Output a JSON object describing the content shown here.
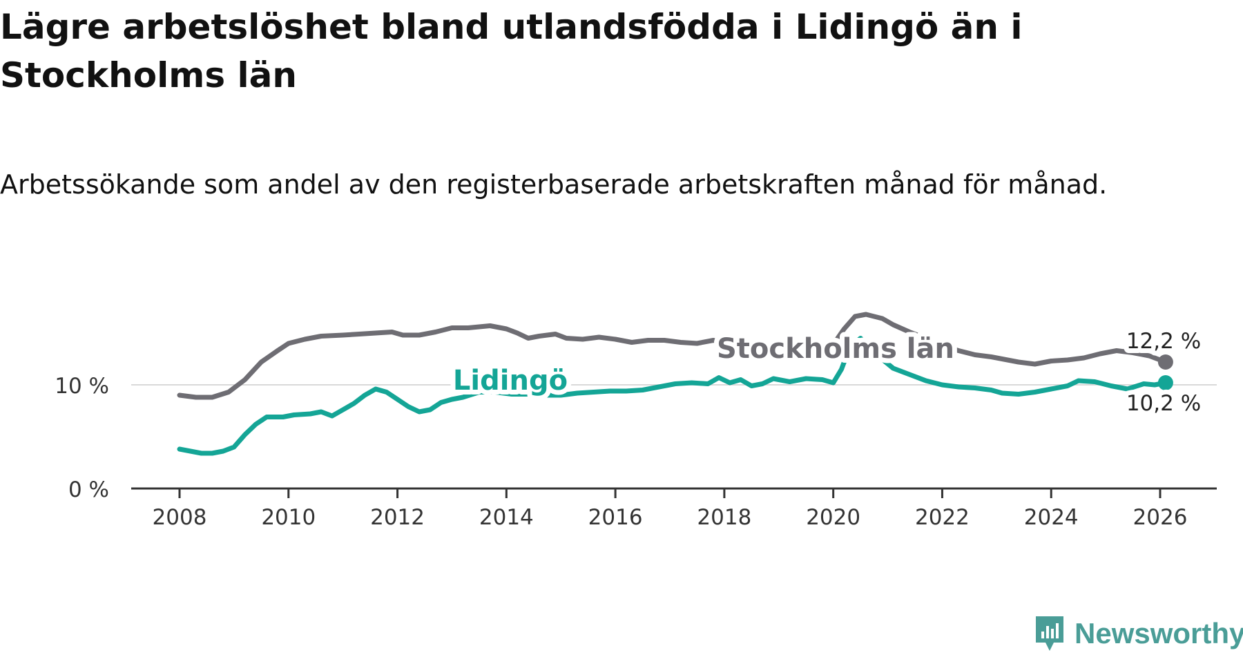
{
  "header": {
    "title": "Lägre arbetslöshet bland utlandsfödda i Lidingö än i Stockholms län",
    "subtitle": "Arbetssökande som andel av den registerbaserade arbetskraften månad för månad."
  },
  "branding": {
    "name": "Newsworthy",
    "icon": "newsworthy-logo-icon"
  },
  "colors": {
    "stockholm": "#6e6d73",
    "lidingo": "#14a596",
    "axis": "#333333",
    "grid": "#d9d9d9",
    "brand": "#4a9d97"
  },
  "chart_data": {
    "type": "line",
    "title": "Lägre arbetslöshet bland utlandsfödda i Lidingö än i Stockholms län",
    "subtitle": "Arbetssökande som andel av den registerbaserade arbetskraften månad för månad.",
    "xlabel": "",
    "ylabel": "",
    "xlim": [
      2007.1,
      2027.0
    ],
    "ylim": [
      0,
      20
    ],
    "x_ticks": [
      2008,
      2010,
      2012,
      2014,
      2016,
      2018,
      2020,
      2022,
      2024,
      2026
    ],
    "x_tick_labels": [
      "2008",
      "2010",
      "2012",
      "2014",
      "2016",
      "2018",
      "2020",
      "2022",
      "2024",
      "2026"
    ],
    "y_ticks": [
      0,
      10
    ],
    "y_tick_labels": [
      "0 %",
      "10 %"
    ],
    "grid": "horizontal",
    "series": [
      {
        "name": "Stockholms län",
        "label": "Stockholms län",
        "end_label": "12,2 %",
        "color_key": "stockholm",
        "points": [
          [
            2008.0,
            9.0
          ],
          [
            2008.3,
            8.8
          ],
          [
            2008.6,
            8.8
          ],
          [
            2008.9,
            9.3
          ],
          [
            2009.2,
            10.5
          ],
          [
            2009.5,
            12.2
          ],
          [
            2009.8,
            13.3
          ],
          [
            2010.0,
            14.0
          ],
          [
            2010.3,
            14.4
          ],
          [
            2010.6,
            14.7
          ],
          [
            2011.0,
            14.8
          ],
          [
            2011.3,
            14.9
          ],
          [
            2011.6,
            15.0
          ],
          [
            2011.9,
            15.1
          ],
          [
            2012.1,
            14.8
          ],
          [
            2012.4,
            14.8
          ],
          [
            2012.7,
            15.1
          ],
          [
            2013.0,
            15.5
          ],
          [
            2013.3,
            15.5
          ],
          [
            2013.7,
            15.7
          ],
          [
            2014.0,
            15.4
          ],
          [
            2014.2,
            15.0
          ],
          [
            2014.4,
            14.5
          ],
          [
            2014.6,
            14.7
          ],
          [
            2014.9,
            14.9
          ],
          [
            2015.1,
            14.5
          ],
          [
            2015.4,
            14.4
          ],
          [
            2015.7,
            14.6
          ],
          [
            2016.0,
            14.4
          ],
          [
            2016.3,
            14.1
          ],
          [
            2016.6,
            14.3
          ],
          [
            2016.9,
            14.3
          ],
          [
            2017.2,
            14.1
          ],
          [
            2017.5,
            14.0
          ],
          [
            2017.8,
            14.3
          ],
          [
            2018.0,
            14.0
          ],
          [
            2018.3,
            13.8
          ],
          [
            2018.6,
            13.7
          ],
          [
            2019.0,
            13.7
          ],
          [
            2019.4,
            13.7
          ],
          [
            2019.8,
            13.6
          ],
          [
            2020.0,
            13.9
          ],
          [
            2020.2,
            15.4
          ],
          [
            2020.4,
            16.6
          ],
          [
            2020.6,
            16.8
          ],
          [
            2020.9,
            16.4
          ],
          [
            2021.1,
            15.8
          ],
          [
            2021.4,
            15.1
          ],
          [
            2021.7,
            14.5
          ],
          [
            2022.0,
            13.8
          ],
          [
            2022.3,
            13.3
          ],
          [
            2022.6,
            12.9
          ],
          [
            2022.9,
            12.7
          ],
          [
            2023.1,
            12.5
          ],
          [
            2023.4,
            12.2
          ],
          [
            2023.7,
            12.0
          ],
          [
            2024.0,
            12.3
          ],
          [
            2024.3,
            12.4
          ],
          [
            2024.6,
            12.6
          ],
          [
            2024.9,
            13.0
          ],
          [
            2025.2,
            13.3
          ],
          [
            2025.5,
            13.1
          ],
          [
            2025.8,
            12.8
          ],
          [
            2026.1,
            12.2
          ]
        ]
      },
      {
        "name": "Lidingö",
        "label": "Lidingö",
        "end_label": "10,2 %",
        "color_key": "lidingo",
        "points": [
          [
            2008.0,
            3.8
          ],
          [
            2008.2,
            3.6
          ],
          [
            2008.4,
            3.4
          ],
          [
            2008.6,
            3.4
          ],
          [
            2008.8,
            3.6
          ],
          [
            2009.0,
            4.0
          ],
          [
            2009.2,
            5.2
          ],
          [
            2009.4,
            6.2
          ],
          [
            2009.6,
            6.9
          ],
          [
            2009.9,
            6.9
          ],
          [
            2010.1,
            7.1
          ],
          [
            2010.4,
            7.2
          ],
          [
            2010.6,
            7.4
          ],
          [
            2010.8,
            7.0
          ],
          [
            2011.0,
            7.6
          ],
          [
            2011.2,
            8.2
          ],
          [
            2011.4,
            9.0
          ],
          [
            2011.6,
            9.6
          ],
          [
            2011.8,
            9.3
          ],
          [
            2012.0,
            8.6
          ],
          [
            2012.2,
            7.9
          ],
          [
            2012.4,
            7.4
          ],
          [
            2012.6,
            7.6
          ],
          [
            2012.8,
            8.3
          ],
          [
            2013.0,
            8.6
          ],
          [
            2013.2,
            8.8
          ],
          [
            2013.5,
            9.3
          ],
          [
            2013.8,
            9.3
          ],
          [
            2014.1,
            9.1
          ],
          [
            2014.4,
            9.1
          ],
          [
            2014.7,
            9.0
          ],
          [
            2015.0,
            9.0
          ],
          [
            2015.3,
            9.2
          ],
          [
            2015.6,
            9.3
          ],
          [
            2015.9,
            9.4
          ],
          [
            2016.2,
            9.4
          ],
          [
            2016.5,
            9.5
          ],
          [
            2016.8,
            9.8
          ],
          [
            2017.1,
            10.1
          ],
          [
            2017.4,
            10.2
          ],
          [
            2017.7,
            10.1
          ],
          [
            2017.9,
            10.7
          ],
          [
            2018.1,
            10.2
          ],
          [
            2018.3,
            10.5
          ],
          [
            2018.5,
            9.9
          ],
          [
            2018.7,
            10.1
          ],
          [
            2018.9,
            10.6
          ],
          [
            2019.2,
            10.3
          ],
          [
            2019.5,
            10.6
          ],
          [
            2019.8,
            10.5
          ],
          [
            2020.0,
            10.2
          ],
          [
            2020.15,
            11.5
          ],
          [
            2020.3,
            13.6
          ],
          [
            2020.5,
            14.5
          ],
          [
            2020.8,
            12.9
          ],
          [
            2021.1,
            11.6
          ],
          [
            2021.4,
            11.0
          ],
          [
            2021.7,
            10.4
          ],
          [
            2022.0,
            10.0
          ],
          [
            2022.3,
            9.8
          ],
          [
            2022.6,
            9.7
          ],
          [
            2022.9,
            9.5
          ],
          [
            2023.1,
            9.2
          ],
          [
            2023.4,
            9.1
          ],
          [
            2023.7,
            9.3
          ],
          [
            2024.0,
            9.6
          ],
          [
            2024.3,
            9.9
          ],
          [
            2024.5,
            10.4
          ],
          [
            2024.8,
            10.3
          ],
          [
            2025.1,
            9.9
          ],
          [
            2025.4,
            9.6
          ],
          [
            2025.7,
            10.1
          ],
          [
            2025.9,
            10.0
          ],
          [
            2026.1,
            10.2
          ]
        ]
      }
    ]
  }
}
